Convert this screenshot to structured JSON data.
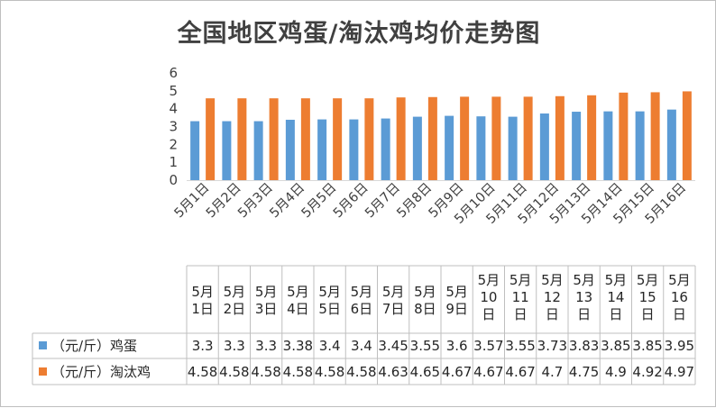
{
  "chart_data": {
    "type": "bar",
    "title": "全国地区鸡蛋/淘汰鸡均价走势图",
    "categories": [
      "5月1日",
      "5月2日",
      "5月3日",
      "5月4日",
      "5月5日",
      "5月6日",
      "5月7日",
      "5月8日",
      "5月9日",
      "5月10日",
      "5月11日",
      "5月12日",
      "5月13日",
      "5月14日",
      "5月15日",
      "5月16日"
    ],
    "series": [
      {
        "name": "（元/斤）鸡蛋",
        "color": "#5B9BD5",
        "values": [
          3.3,
          3.3,
          3.3,
          3.38,
          3.4,
          3.4,
          3.45,
          3.55,
          3.6,
          3.57,
          3.55,
          3.73,
          3.83,
          3.85,
          3.85,
          3.95
        ],
        "labels": [
          "3.3",
          "3.3",
          "3.3",
          "3.38",
          "3.4",
          "3.4",
          "3.45",
          "3.55",
          "3.6",
          "3.57",
          "3.55",
          "3.73",
          "3.83",
          "3.85",
          "3.85",
          "3.95"
        ]
      },
      {
        "name": "（元/斤）淘汰鸡",
        "color": "#ED7D31",
        "values": [
          4.58,
          4.58,
          4.58,
          4.58,
          4.58,
          4.58,
          4.63,
          4.65,
          4.67,
          4.67,
          4.67,
          4.7,
          4.75,
          4.9,
          4.92,
          4.97
        ],
        "labels": [
          "4.58",
          "4.58",
          "4.58",
          "4.58",
          "4.58",
          "4.58",
          "4.63",
          "4.65",
          "4.67",
          "4.67",
          "4.67",
          "4.7",
          "4.75",
          "4.9",
          "4.92",
          "4.97"
        ]
      }
    ],
    "ylim": [
      0,
      6
    ],
    "yticks": [
      "0",
      "1",
      "2",
      "3",
      "4",
      "5",
      "6"
    ],
    "grid": false,
    "data_table": true,
    "table_headers": [
      [
        "5月",
        "1日"
      ],
      [
        "5月",
        "2日"
      ],
      [
        "5月",
        "3日"
      ],
      [
        "5月",
        "4日"
      ],
      [
        "5月",
        "5日"
      ],
      [
        "5月",
        "6日"
      ],
      [
        "5月",
        "7日"
      ],
      [
        "5月",
        "8日"
      ],
      [
        "5月",
        "9日"
      ],
      [
        "5月",
        "10",
        "日"
      ],
      [
        "5月",
        "11",
        "日"
      ],
      [
        "5月",
        "12",
        "日"
      ],
      [
        "5月",
        "13",
        "日"
      ],
      [
        "5月",
        "14",
        "日"
      ],
      [
        "5月",
        "15",
        "日"
      ],
      [
        "5月",
        "16",
        "日"
      ]
    ]
  }
}
